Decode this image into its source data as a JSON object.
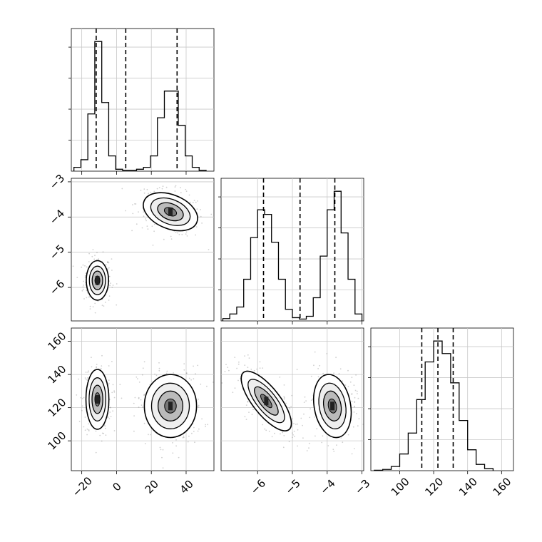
{
  "chart_data": [
    {
      "type": "histogram",
      "panel": "marginal-param-1",
      "bins": [
        -24.5,
        -20.5,
        -16.5,
        -12.5,
        -8.5,
        -4.5,
        -0.5,
        3.5,
        7.5,
        11.5,
        15.5,
        19.5,
        23.5,
        27.5,
        31.5,
        35.5,
        39.5,
        43.5,
        47.5,
        51.5
      ],
      "counts": [
        1,
        3,
        15,
        34,
        18,
        4,
        0.5,
        0.2,
        0.2,
        0.5,
        1,
        4,
        14,
        21,
        21,
        12,
        4,
        1,
        0.2
      ],
      "quantiles": [
        -11.7,
        5.3,
        34.8
      ],
      "xlim": [
        -26,
        56
      ],
      "xticks": [
        "−20",
        "0",
        "20",
        "40"
      ],
      "grid": true
    },
    {
      "type": "histogram",
      "panel": "marginal-param-2",
      "bins": [
        -7.0,
        -6.8,
        -6.6,
        -6.4,
        -6.2,
        -6.0,
        -5.8,
        -5.6,
        -5.4,
        -5.2,
        -5.0,
        -4.8,
        -4.6,
        -4.4,
        -4.2,
        -4.0,
        -3.8,
        -3.6,
        -3.4,
        -3.2,
        -3.0
      ],
      "counts": [
        0.5,
        1.5,
        3,
        9,
        18,
        24,
        23,
        17,
        9,
        2.5,
        0.7,
        0.4,
        1,
        5,
        14,
        24,
        28,
        19,
        9,
        1.5
      ],
      "quantiles": [
        -5.83,
        -4.78,
        -3.78
      ],
      "xlim": [
        -7.05,
        -2.95
      ],
      "xticks": [
        "−6",
        "−5",
        "−4",
        "−3"
      ],
      "grid": true
    },
    {
      "type": "histogram",
      "panel": "marginal-param-3",
      "bins": [
        85,
        90,
        95,
        100,
        105,
        110,
        115,
        120,
        125,
        130,
        135,
        140,
        145,
        150,
        155
      ],
      "counts": [
        0.1,
        0.3,
        1,
        4,
        9,
        17,
        26,
        31,
        28,
        21,
        12,
        5,
        1.5,
        0.5
      ],
      "quantiles": [
        113,
        122.5,
        131.5
      ],
      "xlim": [
        83,
        167
      ],
      "xticks": [
        "100",
        "120",
        "140",
        "160"
      ],
      "grid": true
    },
    {
      "type": "contour",
      "panel": "param-1-vs-param-2",
      "xlim": [
        -26,
        56
      ],
      "ylim": [
        -6.95,
        -2.9
      ],
      "yticks": [
        "−3",
        "−4",
        "−5",
        "−6"
      ],
      "modes": [
        {
          "x": -11,
          "y": -5.8,
          "sx": 3.2,
          "sy": 0.28,
          "rho": 0
        },
        {
          "x": 31,
          "y": -3.85,
          "sx": 7.8,
          "sy": 0.27,
          "rho": -0.35
        }
      ],
      "grid": true
    },
    {
      "type": "contour",
      "panel": "param-1-vs-param-3",
      "xlim": [
        -26,
        56
      ],
      "ylim": [
        82,
        168
      ],
      "xticks": [
        "−20",
        "0",
        "20",
        "40"
      ],
      "yticks": [
        "160",
        "140",
        "120",
        "100"
      ],
      "modes": [
        {
          "x": -11,
          "y": 125,
          "sx": 3.3,
          "sy": 9,
          "rho": 0
        },
        {
          "x": 31,
          "y": 121,
          "sx": 7.5,
          "sy": 9.5,
          "rho": 0
        }
      ],
      "grid": true
    },
    {
      "type": "contour",
      "panel": "param-2-vs-param-3",
      "xlim": [
        -7.05,
        -2.95
      ],
      "ylim": [
        82,
        168
      ],
      "xticks": [
        "−6",
        "−5",
        "−4",
        "−3"
      ],
      "modes": [
        {
          "x": -5.75,
          "y": 124,
          "sx": 0.36,
          "sy": 9,
          "rho": -0.75
        },
        {
          "x": -3.85,
          "y": 121,
          "sx": 0.27,
          "sy": 9.5,
          "rho": -0.2
        }
      ],
      "grid": true
    }
  ]
}
